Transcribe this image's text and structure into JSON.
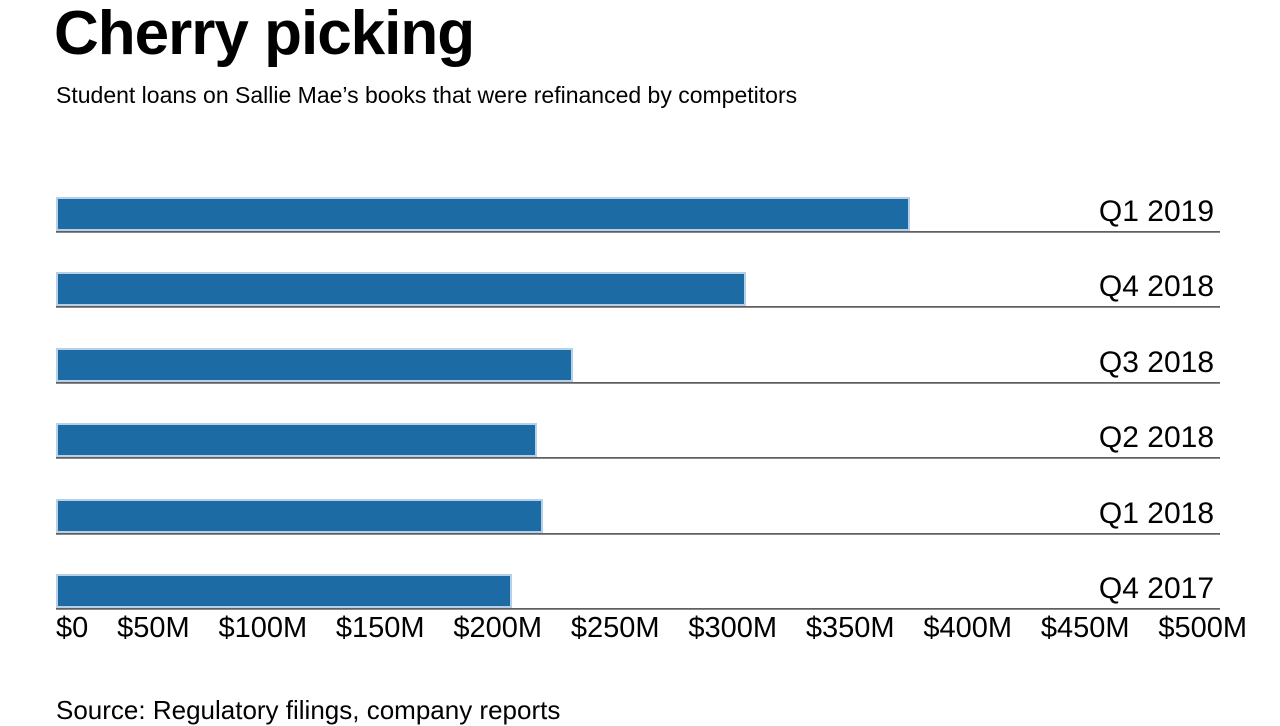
{
  "header": {
    "title": "Cherry picking",
    "subtitle": "Student loans on Sallie Mae’s books that were refinanced by competitors"
  },
  "chart_data": {
    "type": "bar",
    "orientation": "horizontal",
    "title": "Cherry picking",
    "subtitle": "Student loans on Sallie Mae’s books that were refinanced by competitors",
    "categories": [
      "Q1 2019",
      "Q4 2018",
      "Q3 2018",
      "Q2 2018",
      "Q1 2018",
      "Q4 2017"
    ],
    "values": [
      375,
      303,
      227,
      211,
      214,
      200
    ],
    "unit": "USD millions (values estimated from axis)",
    "xlabel": "",
    "ylabel": "",
    "xlim": [
      0,
      500
    ],
    "x_tick_labels": [
      "$0",
      "$50M",
      "$100M",
      "$150M",
      "$200M",
      "$250M",
      "$300M",
      "$350M",
      "$400M",
      "$450M",
      "$500M"
    ],
    "grid": false,
    "legend": "none",
    "bar_color": "#1d6ba5",
    "bar_border_color": "#b5d0e7",
    "baseline_color": "#4a4a4a",
    "text_color": "#000000"
  },
  "footer": {
    "source": "Source: Regulatory filings, company reports"
  }
}
